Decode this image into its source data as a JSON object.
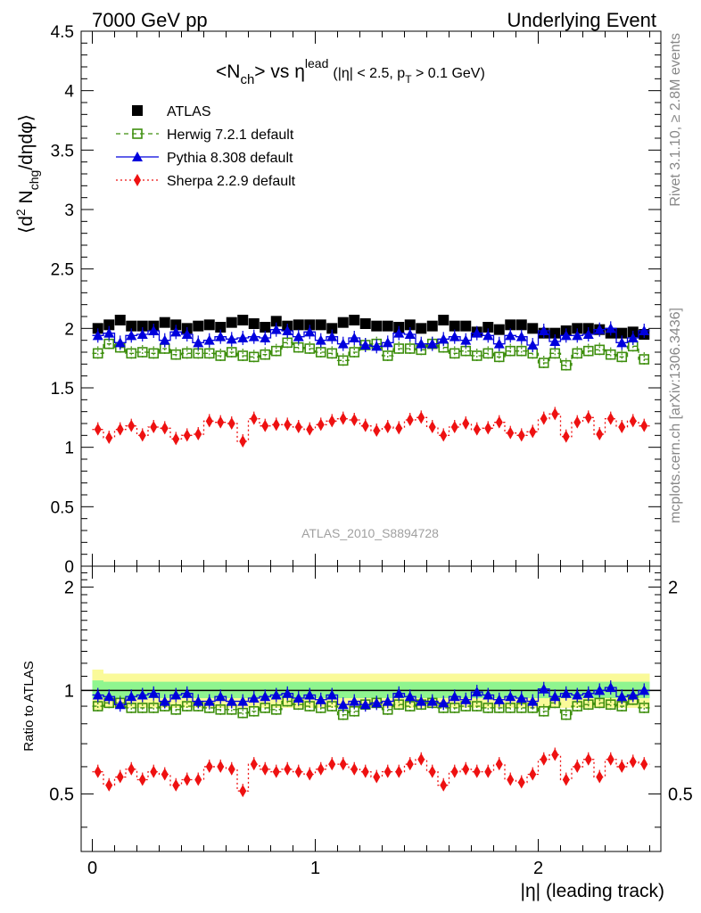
{
  "header": {
    "left": "7000 GeV pp",
    "right": "Underlying Event"
  },
  "side_labels": {
    "rivet": "Rivet 3.1.10, ≥ 2.8M events",
    "mcplots": "mcplots.cern.ch [arXiv:1306.3436]"
  },
  "plot_title": {
    "main_a": "<N",
    "main_sub": "ch",
    "main_b": "> vs η",
    "main_sup": "lead",
    "cut_a": "(|η| < 2.5, p",
    "cut_sub": "T",
    "cut_b": " > 0.1 GeV)"
  },
  "analysis_id": "ATLAS_2010_S8894728",
  "colors": {
    "ATLAS": "#000000",
    "Herwig": "#3f8f0f",
    "Pythia": "#0000dd",
    "Sherpa": "#ee1111",
    "band_inner": "#8ff58f",
    "band_outer": "#fafa99"
  },
  "chart_data": [
    {
      "type": "scatter",
      "panel": "main",
      "ylabel": "⟨d² N_chg/dηdφ⟩",
      "ylim": [
        0,
        4.5
      ],
      "yticks": [
        "0",
        "0.5",
        "1",
        "1.5",
        "2",
        "2.5",
        "3",
        "3.5",
        "4",
        "4.5"
      ],
      "xlim": [
        -0.05,
        2.55
      ],
      "legend_position": "top-left",
      "x": [
        0.025,
        0.075,
        0.125,
        0.175,
        0.225,
        0.275,
        0.325,
        0.375,
        0.425,
        0.475,
        0.525,
        0.575,
        0.625,
        0.675,
        0.725,
        0.775,
        0.825,
        0.875,
        0.925,
        0.975,
        1.025,
        1.075,
        1.125,
        1.175,
        1.225,
        1.275,
        1.325,
        1.375,
        1.425,
        1.475,
        1.525,
        1.575,
        1.625,
        1.675,
        1.725,
        1.775,
        1.825,
        1.875,
        1.925,
        1.975,
        2.025,
        2.075,
        2.125,
        2.175,
        2.225,
        2.275,
        2.325,
        2.375,
        2.425,
        2.475
      ],
      "series": [
        {
          "name": "ATLAS",
          "values": [
            2.0,
            2.03,
            2.07,
            2.02,
            2.02,
            2.02,
            2.05,
            2.03,
            2.0,
            2.02,
            2.03,
            2.01,
            2.05,
            2.07,
            2.04,
            2.01,
            2.06,
            2.02,
            2.03,
            2.03,
            2.03,
            2.0,
            2.05,
            2.07,
            2.04,
            2.02,
            2.02,
            2.01,
            2.03,
            2.0,
            2.02,
            2.07,
            2.02,
            2.02,
            1.97,
            2.01,
            1.99,
            2.03,
            2.03,
            2.0,
            1.96,
            1.96,
            1.98,
            2.0,
            2.0,
            1.99,
            1.96,
            1.96,
            1.97,
            1.95
          ]
        },
        {
          "name": "Herwig 7.2.1 default",
          "values": [
            1.79,
            1.87,
            1.84,
            1.79,
            1.8,
            1.79,
            1.83,
            1.78,
            1.79,
            1.79,
            1.79,
            1.77,
            1.8,
            1.77,
            1.76,
            1.78,
            1.81,
            1.88,
            1.84,
            1.83,
            1.8,
            1.79,
            1.73,
            1.8,
            1.86,
            1.87,
            1.77,
            1.83,
            1.83,
            1.82,
            1.87,
            1.84,
            1.79,
            1.81,
            1.77,
            1.79,
            1.76,
            1.81,
            1.81,
            1.79,
            1.71,
            1.79,
            1.69,
            1.79,
            1.81,
            1.82,
            1.78,
            1.76,
            1.85,
            1.74
          ]
        },
        {
          "name": "Pythia 8.308 default",
          "values": [
            1.94,
            1.96,
            1.88,
            1.94,
            1.95,
            1.98,
            1.9,
            1.97,
            1.95,
            1.88,
            1.9,
            1.93,
            1.91,
            1.92,
            1.93,
            1.92,
            1.99,
            1.98,
            1.93,
            1.97,
            1.9,
            1.93,
            1.87,
            1.92,
            1.86,
            1.85,
            1.88,
            1.96,
            1.95,
            1.87,
            1.87,
            1.91,
            1.93,
            1.9,
            1.96,
            1.94,
            1.87,
            1.94,
            1.93,
            1.86,
            1.98,
            1.89,
            1.94,
            1.94,
            1.95,
            1.99,
            2.0,
            1.88,
            1.92,
            1.98
          ]
        },
        {
          "name": "Sherpa 2.2.9 default",
          "values": [
            1.15,
            1.08,
            1.15,
            1.18,
            1.1,
            1.17,
            1.16,
            1.07,
            1.1,
            1.11,
            1.22,
            1.21,
            1.2,
            1.05,
            1.24,
            1.18,
            1.19,
            1.19,
            1.17,
            1.15,
            1.19,
            1.22,
            1.24,
            1.23,
            1.18,
            1.14,
            1.17,
            1.16,
            1.23,
            1.25,
            1.17,
            1.1,
            1.17,
            1.2,
            1.15,
            1.16,
            1.21,
            1.12,
            1.1,
            1.13,
            1.24,
            1.28,
            1.09,
            1.21,
            1.25,
            1.11,
            1.24,
            1.17,
            1.22,
            1.18
          ]
        }
      ]
    },
    {
      "type": "scatter",
      "panel": "ratio",
      "ylabel": "Ratio to ATLAS",
      "xlabel": "|η| (leading track)",
      "ylim": [
        0.34,
        2.3
      ],
      "yticks": [
        "0.5",
        "1",
        "2"
      ],
      "yticks_right": [
        "0.5",
        "2"
      ],
      "xticks": [
        "0",
        "1",
        "2"
      ],
      "xlim": [
        -0.05,
        2.55
      ],
      "series": [
        {
          "name": "Herwig 7.2.1 default",
          "values": [
            0.9,
            0.92,
            0.92,
            0.89,
            0.89,
            0.89,
            0.9,
            0.88,
            0.9,
            0.9,
            0.89,
            0.88,
            0.88,
            0.86,
            0.87,
            0.89,
            0.88,
            0.93,
            0.91,
            0.9,
            0.89,
            0.9,
            0.85,
            0.87,
            0.91,
            0.92,
            0.88,
            0.91,
            0.9,
            0.91,
            0.92,
            0.89,
            0.89,
            0.9,
            0.9,
            0.89,
            0.89,
            0.89,
            0.89,
            0.89,
            0.87,
            0.92,
            0.85,
            0.9,
            0.91,
            0.92,
            0.91,
            0.9,
            0.94,
            0.89
          ]
        },
        {
          "name": "Pythia 8.308 default",
          "values": [
            0.97,
            0.96,
            0.91,
            0.96,
            0.97,
            0.98,
            0.93,
            0.97,
            0.98,
            0.93,
            0.93,
            0.96,
            0.93,
            0.93,
            0.95,
            0.96,
            0.97,
            0.98,
            0.95,
            0.97,
            0.94,
            0.97,
            0.91,
            0.93,
            0.91,
            0.92,
            0.93,
            0.98,
            0.96,
            0.93,
            0.93,
            0.92,
            0.96,
            0.94,
            0.99,
            0.97,
            0.94,
            0.96,
            0.95,
            0.93,
            1.01,
            0.96,
            0.98,
            0.97,
            0.98,
            1.0,
            1.02,
            0.96,
            0.97,
            1.0
          ]
        },
        {
          "name": "Sherpa 2.2.9 default",
          "values": [
            0.58,
            0.53,
            0.56,
            0.59,
            0.55,
            0.58,
            0.57,
            0.53,
            0.55,
            0.55,
            0.6,
            0.6,
            0.59,
            0.51,
            0.61,
            0.59,
            0.58,
            0.59,
            0.58,
            0.57,
            0.59,
            0.61,
            0.61,
            0.59,
            0.58,
            0.56,
            0.58,
            0.58,
            0.61,
            0.63,
            0.58,
            0.53,
            0.58,
            0.59,
            0.58,
            0.58,
            0.61,
            0.55,
            0.54,
            0.57,
            0.63,
            0.65,
            0.55,
            0.6,
            0.63,
            0.56,
            0.63,
            0.6,
            0.62,
            0.61
          ]
        }
      ]
    }
  ]
}
